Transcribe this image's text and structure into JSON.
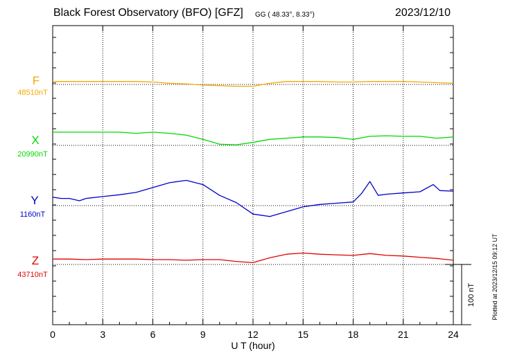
{
  "header": {
    "title": "Black Forest Observatory (BFO)  [GFZ]",
    "coords": "GG ( 48.33°,  8.33°)",
    "date": "2023/12/10"
  },
  "plotted_note": "Plotted at 2023/12/15 09:12 UT",
  "scale_label": "100 nT",
  "colors": {
    "F": "#f5a800",
    "X": "#00d800",
    "Y": "#0000cc",
    "Z": "#e00000"
  },
  "chart_data": {
    "type": "line",
    "xlabel": "U T (hour)",
    "xlim": [
      0,
      24
    ],
    "x_ticks": [
      "0",
      "3",
      "6",
      "9",
      "12",
      "15",
      "18",
      "21",
      "24"
    ],
    "grid": true,
    "scale_bar_nT": 100,
    "series": [
      {
        "name": "F",
        "baseline_label": "48510nT",
        "baseline_nT": 48510,
        "x": [
          0,
          1,
          2,
          3,
          4,
          5,
          6,
          7,
          8,
          9,
          10,
          11,
          12,
          13,
          14,
          15,
          16,
          17,
          18,
          19,
          20,
          21,
          22,
          23,
          24
        ],
        "offset_nT": [
          5,
          5,
          5,
          5,
          5,
          5,
          4,
          2,
          1,
          -1,
          -2,
          -3,
          -3,
          2,
          5,
          5,
          5,
          4,
          4,
          5,
          5,
          5,
          4,
          3,
          2
        ]
      },
      {
        "name": "X",
        "baseline_label": "20990nT",
        "baseline_nT": 20990,
        "x": [
          0,
          1,
          2,
          3,
          4,
          5,
          6,
          7,
          8,
          9,
          10,
          11,
          12,
          13,
          14,
          15,
          16,
          17,
          18,
          19,
          20,
          21,
          22,
          23,
          24
        ],
        "offset_nT": [
          22,
          22,
          22,
          22,
          22,
          20,
          22,
          20,
          17,
          10,
          2,
          1,
          5,
          10,
          12,
          14,
          14,
          13,
          10,
          15,
          16,
          15,
          15,
          12,
          14
        ]
      },
      {
        "name": "Y",
        "baseline_label": "1160nT",
        "baseline_nT": 1160,
        "x": [
          0,
          0.5,
          1,
          1.6,
          2,
          3,
          4,
          5,
          6,
          7,
          8,
          9,
          10,
          11,
          12,
          13,
          14,
          15,
          16,
          17,
          18,
          18.5,
          19,
          19.5,
          20,
          21,
          22,
          22.8,
          23.2,
          24
        ],
        "offset_nT": [
          14,
          12,
          12,
          8,
          12,
          15,
          18,
          22,
          30,
          38,
          42,
          35,
          17,
          5,
          -14,
          -18,
          -10,
          -2,
          2,
          4,
          6,
          20,
          40,
          17,
          19,
          21,
          23,
          35,
          25,
          24
        ]
      },
      {
        "name": "Z",
        "baseline_label": "43710nT",
        "baseline_nT": 43710,
        "x": [
          0,
          1,
          2,
          3,
          4,
          5,
          6,
          7,
          8,
          9,
          10,
          11,
          12,
          13,
          14,
          15,
          16,
          17,
          18,
          19,
          20,
          21,
          22,
          23,
          24
        ],
        "offset_nT": [
          9,
          9,
          8,
          9,
          9,
          9,
          8,
          8,
          7,
          8,
          8,
          5,
          3,
          11,
          17,
          19,
          17,
          16,
          15,
          18,
          15,
          14,
          12,
          10,
          7
        ]
      }
    ]
  }
}
